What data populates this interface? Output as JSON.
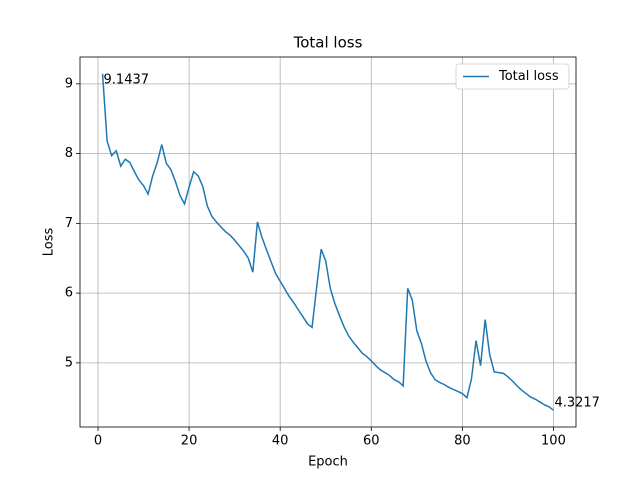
{
  "chart_data": {
    "type": "line",
    "title": "Total loss",
    "x_label": "Epoch",
    "y_label": "Loss",
    "x": [
      1,
      2,
      3,
      4,
      5,
      6,
      7,
      8,
      9,
      10,
      11,
      12,
      13,
      14,
      15,
      16,
      17,
      18,
      19,
      20,
      21,
      22,
      23,
      24,
      25,
      26,
      27,
      28,
      29,
      30,
      31,
      32,
      33,
      34,
      35,
      36,
      37,
      38,
      39,
      40,
      41,
      42,
      43,
      44,
      45,
      46,
      47,
      48,
      49,
      50,
      51,
      52,
      53,
      54,
      55,
      56,
      57,
      58,
      59,
      60,
      61,
      62,
      63,
      64,
      65,
      66,
      67,
      68,
      69,
      70,
      71,
      72,
      73,
      74,
      75,
      76,
      77,
      78,
      79,
      80,
      81,
      82,
      83,
      84,
      85,
      86,
      87,
      88,
      89,
      90,
      91,
      92,
      93,
      94,
      95,
      96,
      97,
      98,
      99,
      100
    ],
    "series": [
      {
        "name": "Total loss",
        "color": "#1f77b4",
        "values": [
          9.1437,
          8.18,
          7.97,
          8.04,
          7.82,
          7.92,
          7.87,
          7.74,
          7.62,
          7.54,
          7.42,
          7.68,
          7.87,
          8.13,
          7.86,
          7.77,
          7.6,
          7.4,
          7.28,
          7.52,
          7.74,
          7.68,
          7.53,
          7.25,
          7.1,
          7.02,
          6.95,
          6.88,
          6.83,
          6.76,
          6.68,
          6.6,
          6.5,
          6.3,
          7.02,
          6.8,
          6.62,
          6.45,
          6.28,
          6.17,
          6.06,
          5.95,
          5.86,
          5.76,
          5.66,
          5.56,
          5.51,
          6.08,
          6.63,
          6.46,
          6.07,
          5.85,
          5.68,
          5.52,
          5.39,
          5.3,
          5.22,
          5.14,
          5.09,
          5.03,
          4.96,
          4.9,
          4.86,
          4.82,
          4.76,
          4.73,
          4.67,
          6.07,
          5.9,
          5.46,
          5.28,
          5.03,
          4.86,
          4.76,
          4.72,
          4.69,
          4.65,
          4.62,
          4.59,
          4.56,
          4.5,
          4.77,
          5.32,
          4.96,
          5.62,
          5.12,
          4.87,
          4.86,
          4.85,
          4.8,
          4.74,
          4.67,
          4.61,
          4.56,
          4.51,
          4.48,
          4.44,
          4.4,
          4.37,
          4.3217
        ]
      }
    ],
    "annotations": [
      {
        "text": "9.1437",
        "x": 1,
        "y": 9.1437,
        "color": "green"
      },
      {
        "text": "4.3217",
        "x": 100,
        "y": 4.3217,
        "color": "red"
      }
    ],
    "xlim": [
      -3.95,
      104.95
    ],
    "ylim": [
      4.0806,
      9.3848
    ],
    "xticks": [
      0,
      20,
      40,
      60,
      80,
      100
    ],
    "yticks": [
      5,
      6,
      7,
      8,
      9
    ],
    "grid": true,
    "legend": "upper right"
  }
}
